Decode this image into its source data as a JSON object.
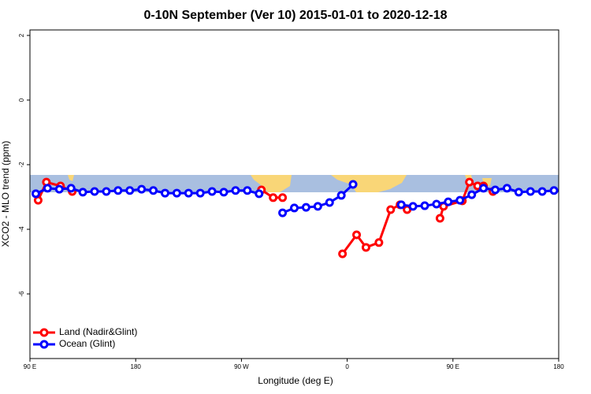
{
  "chart_data": {
    "type": "line",
    "title": "0-10N September (Ver 10)   2015-01-01 to 2020-12-18",
    "x_label": "Longitude (deg E)",
    "y_label": "XCO2 - MLO trend (ppm)",
    "xlim": [
      90,
      540
    ],
    "xticks": [
      {
        "value": 90,
        "label": "90 E"
      },
      180,
      {
        "value": 270,
        "label": "90 W"
      },
      {
        "value": 360,
        "label": "0"
      },
      {
        "value": 450,
        "label": "90 E"
      },
      {
        "value": 540,
        "label": "180"
      }
    ],
    "ylim": [
      -8,
      2.17
    ],
    "yticks": [
      2,
      0,
      -2,
      -4,
      -6
    ],
    "legend": "bottom-left",
    "series": [
      {
        "name": "Land (Nadir&Glint)",
        "color": "#ff0000",
        "x": [
          97,
          104,
          116,
          126,
          200,
          287,
          297,
          305,
          330,
          356,
          368,
          376,
          387,
          397,
          405,
          411,
          425,
          439,
          442,
          458,
          464,
          471,
          476,
          484
        ],
        "values": [
          -3.1,
          -2.54,
          -2.66,
          -2.83,
          null,
          -2.78,
          -3.02,
          -3.02,
          null,
          -4.76,
          -4.17,
          -4.56,
          -4.41,
          -3.39,
          -3.24,
          -3.39,
          null,
          -3.66,
          -3.29,
          -3.12,
          -2.54,
          -2.66,
          -2.66,
          -2.83
        ]
      },
      {
        "name": "Ocean (Glint)",
        "color": "#0000ff",
        "x": [
          95,
          105,
          115,
          125,
          135,
          145,
          155,
          165,
          175,
          185,
          195,
          205,
          215,
          225,
          235,
          245,
          255,
          265,
          275,
          285,
          295,
          305,
          315,
          325,
          335,
          345,
          355,
          365,
          385,
          406,
          416,
          426,
          436,
          446,
          456,
          466,
          476,
          486,
          496,
          506,
          516,
          526,
          536
        ],
        "values": [
          -2.9,
          -2.73,
          -2.76,
          -2.73,
          -2.85,
          -2.83,
          -2.83,
          -2.8,
          -2.8,
          -2.76,
          -2.8,
          -2.88,
          -2.88,
          -2.88,
          -2.88,
          -2.83,
          -2.85,
          -2.8,
          -2.8,
          -2.9,
          null,
          -3.49,
          -3.34,
          -3.32,
          -3.29,
          -3.17,
          -2.95,
          -2.61,
          null,
          -3.24,
          -3.29,
          -3.27,
          -3.22,
          -3.15,
          -3.1,
          -2.93,
          -2.73,
          -2.78,
          -2.73,
          -2.85,
          -2.83,
          -2.83,
          -2.8
        ]
      }
    ]
  }
}
